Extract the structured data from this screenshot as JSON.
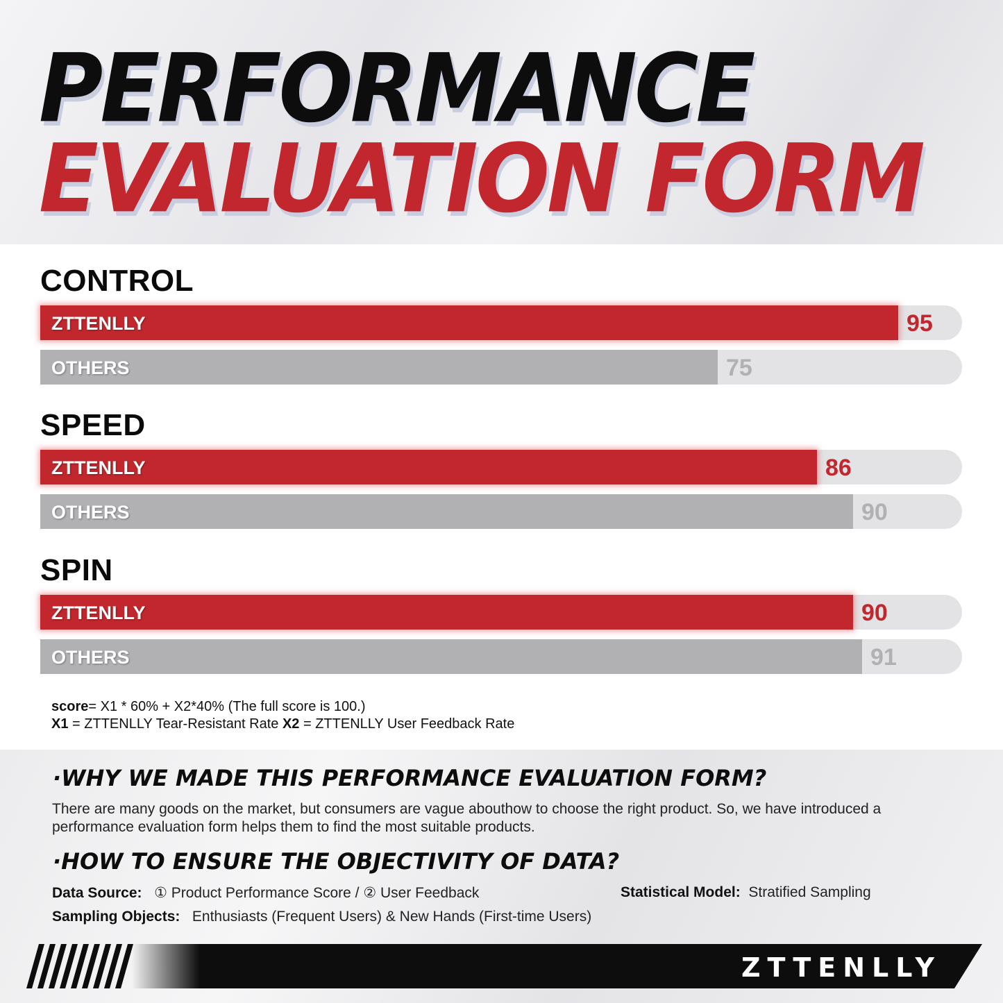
{
  "title": {
    "line1": "PERFORMANCE",
    "line2": "EVALUATION FORM"
  },
  "chart_data": {
    "type": "bar",
    "orientation": "horizontal",
    "xlim": [
      0,
      100
    ],
    "groups": [
      {
        "name": "CONTROL",
        "bars": [
          {
            "label": "ZTTENLLY",
            "value": 95,
            "color": "#c1272d"
          },
          {
            "label": "OTHERS",
            "value": 75,
            "color": "#b1b1b4"
          }
        ]
      },
      {
        "name": "SPEED",
        "bars": [
          {
            "label": "ZTTENLLY",
            "value": 86,
            "color": "#c1272d"
          },
          {
            "label": "OTHERS",
            "value": 90,
            "color": "#b1b1b4"
          }
        ]
      },
      {
        "name": "SPIN",
        "bars": [
          {
            "label": "ZTTENLLY",
            "value": 90,
            "color": "#c1272d"
          },
          {
            "label": "OTHERS",
            "value": 91,
            "color": "#b1b1b4"
          }
        ]
      }
    ]
  },
  "formula": {
    "score_label": "score",
    "score_expr": "= X1 * 60% + X2*40%  (The full score is 100.)",
    "x1_label": "X1",
    "x1_text": " = ZTTENLLY Tear-Resistant Rate  ",
    "x2_label": "X2",
    "x2_text": " = ZTTENLLY User Feedback Rate"
  },
  "why": {
    "heading": "·WHY WE MADE THIS PERFORMANCE EVALUATION FORM?",
    "text": "There are many goods on the market, but consumers are vague abouthow to choose the right product. So, we have introduced a performance evaluation form helps them to find the most suitable products."
  },
  "how": {
    "heading": "·HOW TO ENSURE THE OBJECTIVITY OF DATA?",
    "data_source_label": "Data Source:",
    "data_source_value": "① Product Performance Score   /   ② User Feedback",
    "model_label": "Statistical Model:",
    "model_value": "Stratified Sampling",
    "sampling_label": "Sampling Objects:",
    "sampling_value": "Enthusiasts (Frequent Users) & New Hands (First-time Users)"
  },
  "brand": "ZTTENLLY",
  "colors": {
    "accent_red": "#c1272d",
    "others_grey": "#b1b1b4",
    "track": "#e3e3e5"
  }
}
